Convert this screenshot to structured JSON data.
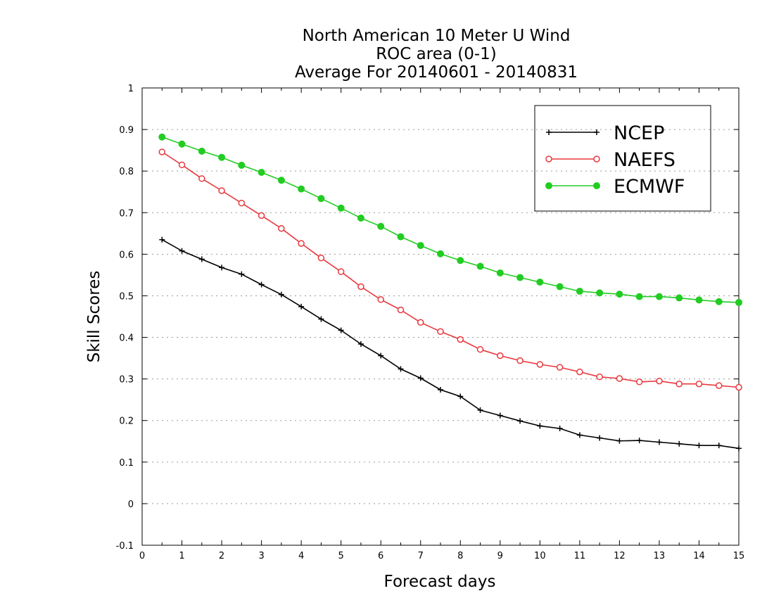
{
  "chart_data": {
    "type": "line",
    "title": [
      "North American 10 Meter U Wind",
      "ROC area (0-1)",
      "Average For 20140601 - 20140831"
    ],
    "xlabel": "Forecast days",
    "ylabel": "Skill Scores",
    "xlim": [
      0,
      15
    ],
    "ylim": [
      -0.1,
      1
    ],
    "xticks": [
      "0",
      "1",
      "2",
      "3",
      "4",
      "5",
      "6",
      "7",
      "8",
      "9",
      "10",
      "11",
      "12",
      "13",
      "14",
      "15"
    ],
    "yticks": [
      "-0.1",
      "0",
      "0.1",
      "0.2",
      "0.3",
      "0.4",
      "0.5",
      "0.6",
      "0.7",
      "0.8",
      "0.9",
      "1"
    ],
    "grid": "horizontal dotted",
    "legend_position": "top-right",
    "x": [
      0.5,
      1,
      1.5,
      2,
      2.5,
      3,
      3.5,
      4,
      4.5,
      5,
      5.5,
      6,
      6.5,
      7,
      7.5,
      8,
      8.5,
      9,
      9.5,
      10,
      10.5,
      11,
      11.5,
      12,
      12.5,
      13,
      13.5,
      14,
      14.5,
      15
    ],
    "series": [
      {
        "name": "NCEP",
        "color": "#000000",
        "marker": "plus",
        "values": [
          0.635,
          0.608,
          0.588,
          0.568,
          0.552,
          0.527,
          0.503,
          0.474,
          0.444,
          0.417,
          0.384,
          0.356,
          0.324,
          0.302,
          0.274,
          0.258,
          0.225,
          0.212,
          0.199,
          0.187,
          0.181,
          0.165,
          0.158,
          0.151,
          0.152,
          0.148,
          0.144,
          0.14,
          0.14,
          0.133
        ]
      },
      {
        "name": "NAEFS",
        "color": "#e8393d",
        "marker": "open-circle",
        "values": [
          0.846,
          0.815,
          0.782,
          0.753,
          0.723,
          0.693,
          0.662,
          0.626,
          0.591,
          0.558,
          0.522,
          0.491,
          0.466,
          0.436,
          0.414,
          0.395,
          0.371,
          0.356,
          0.344,
          0.335,
          0.328,
          0.317,
          0.305,
          0.301,
          0.293,
          0.295,
          0.288,
          0.288,
          0.284,
          0.28
        ]
      },
      {
        "name": "ECMWF",
        "color": "#22cc22",
        "marker": "filled-circle",
        "values": [
          0.882,
          0.865,
          0.848,
          0.833,
          0.814,
          0.797,
          0.778,
          0.757,
          0.734,
          0.711,
          0.687,
          0.667,
          0.642,
          0.621,
          0.601,
          0.585,
          0.571,
          0.555,
          0.544,
          0.533,
          0.522,
          0.511,
          0.507,
          0.504,
          0.498,
          0.498,
          0.495,
          0.49,
          0.486,
          0.484
        ]
      }
    ]
  }
}
